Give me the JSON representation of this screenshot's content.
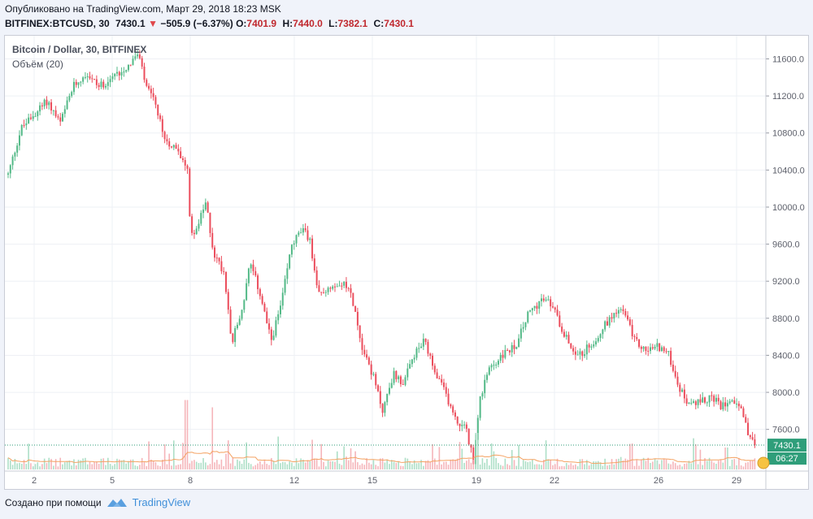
{
  "header": {
    "published": "Опубликовано на TradingView.com, Март 29, 2018 18:23 MSK",
    "symbol": "BITFINEX:BTCUSD, 30",
    "last": "7430.1",
    "change": "−505.9 (−6.37%)",
    "open_label": "O:",
    "open": "7401.9",
    "high_label": "H:",
    "high": "7440.0",
    "low_label": "L:",
    "low": "7382.1",
    "close_label": "C:",
    "close": "7430.1"
  },
  "series_title": "Bitcoin / Dollar, 30, BITFINEX",
  "volume_title": "Объём (20)",
  "footer": {
    "created_with": "Создано при помощи",
    "brand": "TradingView"
  },
  "colors": {
    "up": "#53b987",
    "down": "#eb4d5c",
    "volume_ma": "#f4a262",
    "last_price_badge": "#2f9e7a",
    "grid": "#eef0f5"
  },
  "chart_data": {
    "type": "candlestick",
    "title": "Bitcoin / Dollar, 30, BITFINEX",
    "y_ticks": [
      7600.0,
      8000.0,
      8400.0,
      8800.0,
      9200.0,
      9600.0,
      10000.0,
      10400.0,
      10800.0,
      11200.0,
      11600.0
    ],
    "y_tick_labels": [
      "7600.0",
      "8000.0",
      "8400.0",
      "8800.0",
      "9200.0",
      "9600.0",
      "10000.0",
      "10400.0",
      "10800.0",
      "11200.0",
      "11600.0"
    ],
    "ylim": [
      7150,
      11850
    ],
    "x_tick_labels": [
      "2",
      "5",
      "8",
      "12",
      "15",
      "19",
      "22",
      "26",
      "29"
    ],
    "x_tick_days": [
      2,
      5,
      8,
      12,
      15,
      19,
      22,
      26,
      29
    ],
    "x_range_days": [
      1,
      30
    ],
    "last_price": 7430.1,
    "last_price_label": "7430.1",
    "countdown": "06:27",
    "price_path": [
      [
        1.0,
        10350
      ],
      [
        1.5,
        10850
      ],
      [
        2.0,
        11000
      ],
      [
        2.5,
        11150
      ],
      [
        3.0,
        10900
      ],
      [
        3.5,
        11300
      ],
      [
        4.0,
        11450
      ],
      [
        4.5,
        11300
      ],
      [
        5.0,
        11400
      ],
      [
        5.5,
        11500
      ],
      [
        6.0,
        11650
      ],
      [
        6.3,
        11300
      ],
      [
        6.6,
        11150
      ],
      [
        7.0,
        10750
      ],
      [
        7.5,
        10600
      ],
      [
        7.9,
        10450
      ],
      [
        8.0,
        9700
      ],
      [
        8.3,
        9800
      ],
      [
        8.6,
        10050
      ],
      [
        8.9,
        9500
      ],
      [
        9.3,
        9300
      ],
      [
        9.6,
        8550
      ],
      [
        10.0,
        8900
      ],
      [
        10.3,
        9400
      ],
      [
        10.7,
        9050
      ],
      [
        11.1,
        8550
      ],
      [
        11.5,
        8950
      ],
      [
        11.9,
        9600
      ],
      [
        12.3,
        9750
      ],
      [
        12.6,
        9650
      ],
      [
        12.9,
        9050
      ],
      [
        13.4,
        9150
      ],
      [
        13.8,
        9200
      ],
      [
        14.2,
        9050
      ],
      [
        14.6,
        8500
      ],
      [
        15.0,
        8200
      ],
      [
        15.4,
        7800
      ],
      [
        15.8,
        8200
      ],
      [
        16.2,
        8100
      ],
      [
        16.6,
        8400
      ],
      [
        17.0,
        8550
      ],
      [
        17.4,
        8200
      ],
      [
        17.8,
        8000
      ],
      [
        18.2,
        7700
      ],
      [
        18.6,
        7600
      ],
      [
        18.9,
        7250
      ],
      [
        19.1,
        7900
      ],
      [
        19.5,
        8250
      ],
      [
        20.0,
        8400
      ],
      [
        20.5,
        8500
      ],
      [
        21.0,
        8850
      ],
      [
        21.5,
        9000
      ],
      [
        21.9,
        8950
      ],
      [
        22.2,
        8750
      ],
      [
        22.6,
        8500
      ],
      [
        23.0,
        8400
      ],
      [
        23.5,
        8550
      ],
      [
        24.0,
        8750
      ],
      [
        24.4,
        8900
      ],
      [
        24.7,
        8850
      ],
      [
        25.1,
        8550
      ],
      [
        25.5,
        8450
      ],
      [
        26.0,
        8500
      ],
      [
        26.4,
        8400
      ],
      [
        26.8,
        8050
      ],
      [
        27.2,
        7850
      ],
      [
        27.6,
        7900
      ],
      [
        28.0,
        7950
      ],
      [
        28.4,
        7850
      ],
      [
        28.8,
        7950
      ],
      [
        29.1,
        7850
      ],
      [
        29.4,
        7600
      ],
      [
        29.7,
        7430.1
      ]
    ],
    "volume_spikes": [
      [
        7.85,
        0.95
      ],
      [
        8.85,
        0.85
      ],
      [
        11.4,
        0.45
      ],
      [
        19.0,
        0.5
      ],
      [
        24.9,
        0.35
      ],
      [
        28.6,
        0.3
      ]
    ]
  }
}
